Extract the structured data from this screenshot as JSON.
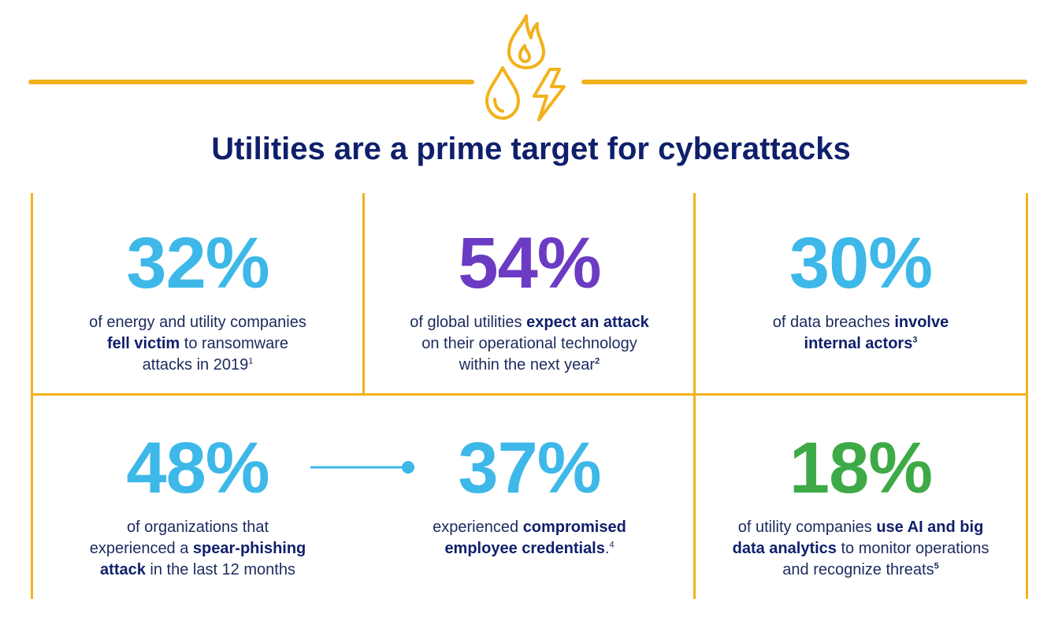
{
  "title": "Utilities are a prime target for cyberattacks",
  "colors": {
    "accent": "#f2b21c",
    "navy": "#0f1f6b",
    "blue": "#3db8e8",
    "purple": "#6c3bc4",
    "green": "#3daa47"
  },
  "icons": [
    "flame-icon",
    "water-drop-icon",
    "lightning-bolt-icon",
    "connector-dot-icon"
  ],
  "stats": {
    "s1": {
      "value": "32%",
      "t1": "of energy and utility companies",
      "b1": "fell victim",
      "t2": " to ransomware",
      "t3": "attacks in 2019",
      "note": "1"
    },
    "s2": {
      "value": "54%",
      "t1": "of global utilities ",
      "b1": "expect an attack",
      "t2": "on their operational technology",
      "t3": "within the next year",
      "note": "2"
    },
    "s3": {
      "value": "30%",
      "t1": "of data breaches ",
      "b1": "involve",
      "b2": "internal actors",
      "note": "3"
    },
    "s4": {
      "value": "48%",
      "t1": "of organizations that",
      "t2": "experienced a ",
      "b1": "spear-phishing",
      "b2": "attack",
      "t3": " in the last 12 months"
    },
    "s5": {
      "value": "37%",
      "t1": "experienced ",
      "b1": "compromised",
      "b2": "employee credentials",
      "t2": ".",
      "note": "4"
    },
    "s6": {
      "value": "18%",
      "t1": "of utility companies ",
      "b1": "use AI and big",
      "b2": "data analytics",
      "t2": " to monitor operations",
      "t3": "and recognize threats",
      "note": "5"
    }
  }
}
